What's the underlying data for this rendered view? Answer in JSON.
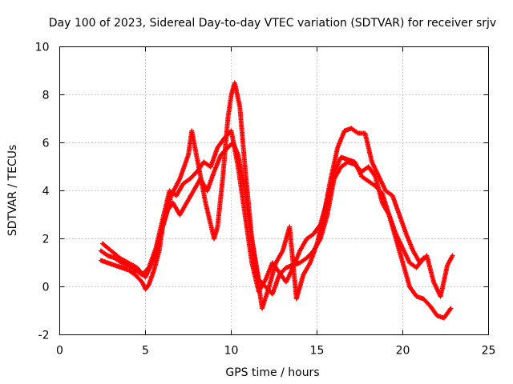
{
  "chart_data": {
    "type": "scatter",
    "title": "Day 100 of 2023, Sidereal Day-to-day VTEC variation (SDTVAR) for receiver srjv",
    "xlabel": "GPS time / hours",
    "ylabel": "SDTVAR / TECUs",
    "xlim": [
      0,
      25
    ],
    "ylim": [
      -2,
      10
    ],
    "x_ticks": [
      "0",
      "5",
      "10",
      "15",
      "20",
      "25"
    ],
    "y_ticks": [
      "-2",
      "0",
      "2",
      "4",
      "6",
      "8",
      "10"
    ],
    "grid": true,
    "legend": "none",
    "marker": "plus",
    "color": "#ff0000",
    "series": [
      {
        "x": [
          2.4,
          2.8,
          3.2,
          3.6,
          4.0,
          4.4,
          4.8,
          5.0,
          5.2,
          5.5,
          5.8,
          6.0,
          6.3,
          6.6,
          7.0,
          7.4,
          7.8,
          8.2,
          8.6,
          9.0,
          9.4,
          9.8,
          10.1,
          10.4,
          10.8,
          11.2,
          11.6,
          12.0,
          12.4,
          12.8,
          13.2,
          13.6,
          14.0,
          14.4,
          14.8,
          15.2,
          15.6,
          16.0,
          16.4,
          16.8,
          17.2,
          17.6,
          18.0,
          18.4,
          18.8,
          19.2,
          19.6,
          20.0,
          20.4,
          20.8,
          21.2,
          21.6,
          22.0,
          22.4,
          22.8
        ],
        "y": [
          1.1,
          1.0,
          0.9,
          0.8,
          0.7,
          0.5,
          0.2,
          -0.1,
          0.1,
          0.7,
          1.5,
          2.5,
          3.2,
          3.5,
          3.0,
          3.5,
          4.0,
          4.5,
          4.0,
          4.8,
          5.5,
          5.8,
          6.0,
          5.5,
          4.0,
          2.0,
          0.3,
          0.0,
          -0.3,
          0.5,
          0.8,
          0.9,
          1.0,
          1.2,
          1.5,
          2.0,
          3.0,
          4.5,
          5.0,
          5.2,
          5.1,
          4.8,
          5.0,
          4.6,
          3.5,
          3.0,
          2.0,
          1.0,
          0.0,
          -0.4,
          -0.5,
          -0.8,
          -1.2,
          -1.3,
          -0.9
        ]
      },
      {
        "x": [
          2.4,
          2.8,
          3.2,
          3.6,
          4.0,
          4.4,
          4.8,
          5.2,
          5.6,
          6.0,
          6.4,
          6.8,
          7.2,
          7.6,
          8.0,
          8.4,
          8.8,
          9.2,
          9.6,
          10.0,
          10.4,
          10.8,
          11.2,
          11.6,
          12.0,
          12.4,
          12.8,
          13.2,
          13.6,
          14.0,
          14.4,
          14.8,
          15.2,
          15.6,
          16.0,
          16.4,
          16.8,
          17.2,
          17.6,
          18.0,
          18.4,
          18.8,
          19.2,
          19.6,
          20.0,
          20.4,
          20.8,
          21.2
        ],
        "y": [
          1.5,
          1.3,
          1.2,
          1.0,
          0.9,
          0.7,
          0.5,
          0.8,
          1.6,
          2.8,
          4.0,
          3.8,
          4.3,
          4.5,
          4.8,
          5.2,
          5.0,
          5.8,
          6.2,
          6.5,
          5.0,
          3.0,
          1.0,
          -0.2,
          0.3,
          1.0,
          0.6,
          0.2,
          0.8,
          1.5,
          2.0,
          2.2,
          2.6,
          3.6,
          4.8,
          5.4,
          5.3,
          5.2,
          4.6,
          4.4,
          4.2,
          3.9,
          3.0,
          2.2,
          1.6,
          1.0,
          0.8,
          1.2
        ]
      },
      {
        "x": [
          2.5,
          3.0,
          3.5,
          4.0,
          4.5,
          5.0,
          5.5,
          6.0,
          6.5,
          7.0,
          7.5,
          7.7,
          8.5,
          9.0,
          9.2,
          9.5,
          9.8,
          10.0,
          10.2,
          10.5,
          10.8,
          11.2,
          11.5,
          11.8,
          12.2,
          12.6,
          13.0,
          13.4,
          13.8,
          14.2,
          14.6,
          15.0,
          15.4,
          15.8,
          16.2,
          16.6,
          17.0,
          17.4,
          17.8,
          18.2,
          18.6,
          19.0,
          19.4,
          19.8,
          20.2,
          20.6,
          21.0,
          21.4,
          21.8,
          22.2,
          22.6,
          22.9
        ],
        "y": [
          1.8,
          1.5,
          1.2,
          1.0,
          0.8,
          0.4,
          1.2,
          2.5,
          3.8,
          4.5,
          5.5,
          6.5,
          3.5,
          2.0,
          2.5,
          4.5,
          7.0,
          8.0,
          8.5,
          7.5,
          5.0,
          2.0,
          0.5,
          -0.9,
          0.0,
          1.0,
          1.5,
          2.5,
          -0.5,
          0.5,
          1.0,
          1.8,
          3.0,
          4.5,
          5.8,
          6.5,
          6.6,
          6.4,
          6.4,
          5.2,
          4.6,
          4.0,
          3.8,
          3.0,
          2.2,
          1.5,
          1.0,
          1.3,
          0.2,
          -0.4,
          0.9,
          1.3
        ]
      }
    ]
  }
}
